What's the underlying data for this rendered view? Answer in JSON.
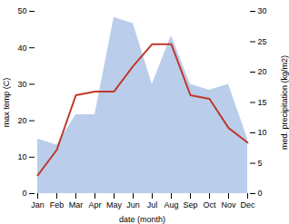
{
  "chart_data": {
    "type": "line",
    "categories": [
      "Jan",
      "Feb",
      "Mar",
      "Apr",
      "May",
      "Jun",
      "Jul",
      "Aug",
      "Sep",
      "Oct",
      "Nov",
      "Dec"
    ],
    "xlabel": "date (month)",
    "ylabel": "max temp (C)",
    "y2label": "med. precipitation (kg/m2)",
    "series": [
      {
        "type": "area",
        "axis": "y2",
        "color": "#aec6e8",
        "values": [
          9,
          8,
          13,
          13,
          29,
          28,
          18,
          26,
          18,
          17,
          18,
          9
        ]
      },
      {
        "type": "line",
        "color": "#c0392b",
        "values": [
          5,
          12,
          27,
          28,
          28,
          35,
          41,
          41,
          27,
          26,
          18,
          14
        ]
      }
    ],
    "ylim": [
      0,
      50
    ],
    "yticks": [
      0,
      10,
      20,
      30,
      40,
      50
    ],
    "y2lim": [
      0,
      30
    ],
    "y2ticks": [
      0,
      5,
      10,
      15,
      20,
      25,
      30
    ],
    "grid": false
  }
}
